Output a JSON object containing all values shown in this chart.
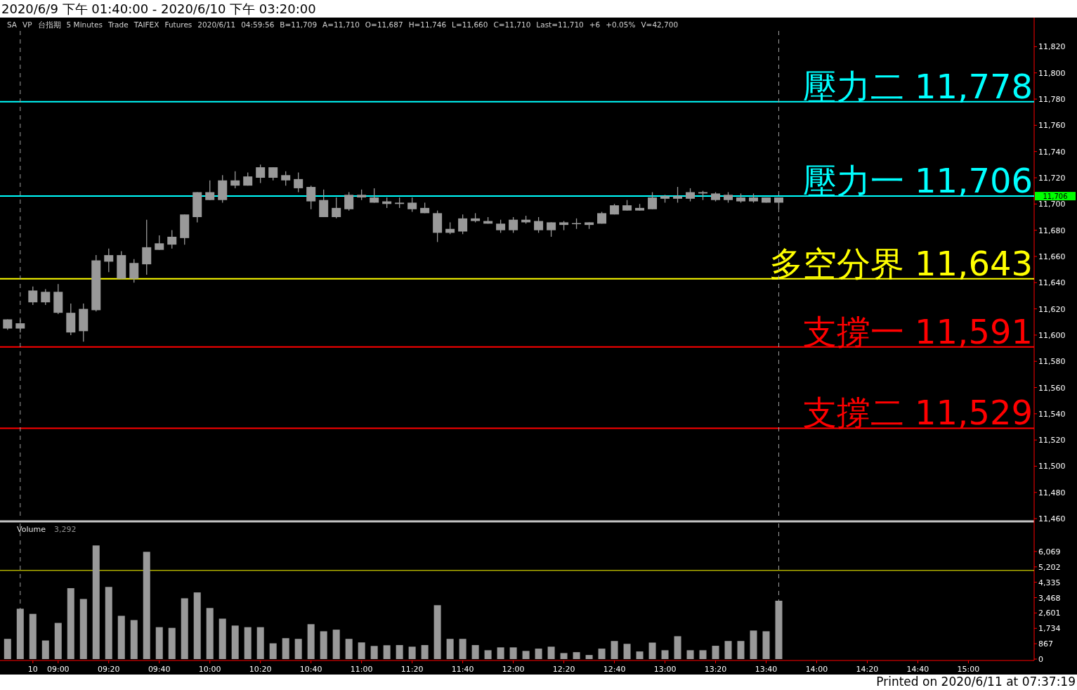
{
  "chart_data": [
    {
      "type": "candlestick",
      "title": "2020/6/9 下午 01:40:00 - 2020/6/10 下午 03:20:00",
      "color": "#999999",
      "annotations": [
        "SA",
        "VP",
        "台指期",
        "5 Minutes",
        "Trade",
        "TAIFEX",
        "Futures",
        "2020/6/11",
        "04:59:56",
        "B=11,709",
        "A=11,710",
        "O=11,687",
        "H=11,746",
        "L=11,660",
        "C=11,710",
        "Last=11,710",
        "+6",
        "+0.05%",
        "V=42,700",
        {
          "text": "11,706",
          "x": "2020-06-10T15:26",
          "y": 11706
        }
      ],
      "x": [
        "2020-06-10T08:40",
        "2020-06-10T08:45",
        "2020-06-10T08:50",
        "2020-06-10T08:55",
        "2020-06-10T09:00",
        "2020-06-10T09:05",
        "2020-06-10T09:10",
        "2020-06-10T09:15",
        "2020-06-10T09:20",
        "2020-06-10T09:25",
        "2020-06-10T09:30",
        "2020-06-10T09:35",
        "2020-06-10T09:40",
        "2020-06-10T09:45",
        "2020-06-10T09:50",
        "2020-06-10T09:55",
        "2020-06-10T10:00",
        "2020-06-10T10:05",
        "2020-06-10T10:10",
        "2020-06-10T10:15",
        "2020-06-10T10:20",
        "2020-06-10T10:25",
        "2020-06-10T10:30",
        "2020-06-10T10:35",
        "2020-06-10T10:40",
        "2020-06-10T10:45",
        "2020-06-10T10:50",
        "2020-06-10T10:55",
        "2020-06-10T11:00",
        "2020-06-10T11:05",
        "2020-06-10T11:10",
        "2020-06-10T11:15",
        "2020-06-10T11:20",
        "2020-06-10T11:25",
        "2020-06-10T11:30",
        "2020-06-10T11:35",
        "2020-06-10T11:40",
        "2020-06-10T11:45",
        "2020-06-10T11:50",
        "2020-06-10T11:55",
        "2020-06-10T12:00",
        "2020-06-10T12:05",
        "2020-06-10T12:10",
        "2020-06-10T12:15",
        "2020-06-10T12:20",
        "2020-06-10T12:25",
        "2020-06-10T12:30",
        "2020-06-10T12:35",
        "2020-06-10T12:40",
        "2020-06-10T12:45",
        "2020-06-10T12:50",
        "2020-06-10T12:55",
        "2020-06-10T13:00",
        "2020-06-10T13:05",
        "2020-06-10T13:10",
        "2020-06-10T13:15",
        "2020-06-10T13:20",
        "2020-06-10T13:25",
        "2020-06-10T13:30",
        "2020-06-10T13:35",
        "2020-06-10T13:40",
        "2020-06-10T13:45"
      ],
      "ohlc": [
        [
          11605,
          11612,
          11604,
          11612
        ],
        [
          11605,
          11612,
          11602,
          11609
        ],
        [
          11625,
          11637,
          11623,
          11634
        ],
        [
          11625,
          11635,
          11623,
          11633
        ],
        [
          11617,
          11639,
          11616,
          11633
        ],
        [
          11602,
          11624,
          11600,
          11617
        ],
        [
          11603,
          11624,
          11595,
          11620
        ],
        [
          11619,
          11661,
          11618,
          11657
        ],
        [
          11656,
          11666,
          11648,
          11661
        ],
        [
          11643,
          11664,
          11643,
          11661
        ],
        [
          11643,
          11658,
          11640,
          11655
        ],
        [
          11654,
          11688,
          11646,
          11667
        ],
        [
          11665,
          11676,
          11665,
          11670
        ],
        [
          11669,
          11680,
          11666,
          11675
        ],
        [
          11674,
          11692,
          11669,
          11692
        ],
        [
          11690,
          11709,
          11686,
          11709
        ],
        [
          11703,
          11718,
          11703,
          11709
        ],
        [
          11703,
          11722,
          11701,
          11718
        ],
        [
          11714,
          11725,
          11712,
          11718
        ],
        [
          11714,
          11724,
          11714,
          11721
        ],
        [
          11720,
          11730,
          11716,
          11728
        ],
        [
          11720,
          11728,
          11718,
          11728
        ],
        [
          11718,
          11725,
          11714,
          11722
        ],
        [
          11712,
          11724,
          11709,
          11719
        ],
        [
          11702,
          11714,
          11696,
          11713
        ],
        [
          11690,
          11711,
          11690,
          11703
        ],
        [
          11690,
          11705,
          11689,
          11697
        ],
        [
          11696,
          11709,
          11695,
          11707
        ],
        [
          11705,
          11711,
          11703,
          11707
        ],
        [
          11701,
          11712,
          11701,
          11705
        ],
        [
          11700,
          11705,
          11697,
          11702
        ],
        [
          11700,
          11705,
          11697,
          11701
        ],
        [
          11696,
          11705,
          11694,
          11701
        ],
        [
          11693,
          11701,
          11693,
          11697
        ],
        [
          11678,
          11695,
          11671,
          11693
        ],
        [
          11678,
          11686,
          11677,
          11681
        ],
        [
          11679,
          11692,
          11677,
          11689
        ],
        [
          11687,
          11693,
          11686,
          11689
        ],
        [
          11685,
          11690,
          11685,
          11687
        ],
        [
          11680,
          11688,
          11678,
          11685
        ],
        [
          11680,
          11690,
          11678,
          11688
        ],
        [
          11686,
          11691,
          11685,
          11688
        ],
        [
          11680,
          11690,
          11678,
          11687
        ],
        [
          11680,
          11686,
          11675,
          11686
        ],
        [
          11684,
          11687,
          11680,
          11686
        ],
        [
          11685,
          11689,
          11681,
          11685
        ],
        [
          11684,
          11686,
          11681,
          11686
        ],
        [
          11685,
          11694,
          11685,
          11693
        ],
        [
          11692,
          11700,
          11692,
          11699
        ],
        [
          11695,
          11703,
          11695,
          11699
        ],
        [
          11695,
          11700,
          11695,
          11697
        ],
        [
          11696,
          11709,
          11696,
          11705
        ],
        [
          11704,
          11707,
          11701,
          11706
        ],
        [
          11704,
          11713,
          11701,
          11706
        ],
        [
          11704,
          11712,
          11702,
          11709
        ],
        [
          11708,
          11710,
          11703,
          11709
        ],
        [
          11703,
          11709,
          11702,
          11708
        ],
        [
          11703,
          11709,
          11701,
          11707
        ],
        [
          11702,
          11708,
          11701,
          11705
        ],
        [
          11702,
          11708,
          11701,
          11705
        ],
        [
          11701,
          11705,
          11701,
          11705
        ],
        [
          11701,
          11705,
          11696,
          11705
        ]
      ],
      "xlim": [
        "2020-06-10T08:37",
        "2020-06-10T15:26"
      ],
      "ylim": [
        11459,
        11832
      ],
      "yticks": [
        {
          "value": 11460,
          "label": "11,460"
        },
        {
          "value": 11480,
          "label": "11,480"
        },
        {
          "value": 11500,
          "label": "11,500"
        },
        {
          "value": 11520,
          "label": "11,520"
        },
        {
          "value": 11540,
          "label": "11,540"
        },
        {
          "value": 11560,
          "label": "11,560"
        },
        {
          "value": 11580,
          "label": "11,580"
        },
        {
          "value": 11600,
          "label": "11,600"
        },
        {
          "value": 11620,
          "label": "11,620"
        },
        {
          "value": 11640,
          "label": "11,640"
        },
        {
          "value": 11660,
          "label": "11,660"
        },
        {
          "value": 11680,
          "label": "11,680"
        },
        {
          "value": 11700,
          "label": "11,700"
        },
        {
          "value": 11720,
          "label": "11,720"
        },
        {
          "value": 11740,
          "label": "11,740"
        },
        {
          "value": 11760,
          "label": "11,760"
        },
        {
          "value": 11780,
          "label": "11,780"
        },
        {
          "value": 11800,
          "label": "11,800"
        },
        {
          "value": 11820,
          "label": "11,820"
        }
      ],
      "tick_labels": "y",
      "ref_lines": [
        {
          "axis": "y",
          "value": 11778,
          "label": "壓力二 11,778",
          "color": "#00ffff"
        },
        {
          "axis": "y",
          "value": 11706,
          "label": "壓力一 11,706",
          "color": "#00ffff"
        },
        {
          "axis": "y",
          "value": 11643,
          "label": "多空分界 11,643",
          "color": "#ffff00"
        },
        {
          "axis": "y",
          "value": 11591,
          "label": "支撐一 11,591",
          "color": "#ff0000"
        },
        {
          "axis": "y",
          "value": 11529,
          "label": "支撐二 11,529",
          "color": "#ff0000"
        },
        {
          "axis": "x",
          "value": "2020-06-10T08:45",
          "color": "#a0a0a0",
          "line_style": "dashed"
        },
        {
          "axis": "x",
          "value": "2020-06-10T13:45",
          "color": "#a0a0a0",
          "line_style": "dashed"
        }
      ]
    },
    {
      "type": "bar",
      "title": "Volume",
      "color": "#999999",
      "annotations": [
        "3,292",
        "Printed on 2020/6/11 at 07:37:19"
      ],
      "x": [
        "2020-06-10T08:40",
        "2020-06-10T08:45",
        "2020-06-10T08:50",
        "2020-06-10T08:55",
        "2020-06-10T09:00",
        "2020-06-10T09:05",
        "2020-06-10T09:10",
        "2020-06-10T09:15",
        "2020-06-10T09:20",
        "2020-06-10T09:25",
        "2020-06-10T09:30",
        "2020-06-10T09:35",
        "2020-06-10T09:40",
        "2020-06-10T09:45",
        "2020-06-10T09:50",
        "2020-06-10T09:55",
        "2020-06-10T10:00",
        "2020-06-10T10:05",
        "2020-06-10T10:10",
        "2020-06-10T10:15",
        "2020-06-10T10:20",
        "2020-06-10T10:25",
        "2020-06-10T10:30",
        "2020-06-10T10:35",
        "2020-06-10T10:40",
        "2020-06-10T10:45",
        "2020-06-10T10:50",
        "2020-06-10T10:55",
        "2020-06-10T11:00",
        "2020-06-10T11:05",
        "2020-06-10T11:10",
        "2020-06-10T11:15",
        "2020-06-10T11:20",
        "2020-06-10T11:25",
        "2020-06-10T11:30",
        "2020-06-10T11:35",
        "2020-06-10T11:40",
        "2020-06-10T11:45",
        "2020-06-10T11:50",
        "2020-06-10T11:55",
        "2020-06-10T12:00",
        "2020-06-10T12:05",
        "2020-06-10T12:10",
        "2020-06-10T12:15",
        "2020-06-10T12:20",
        "2020-06-10T12:25",
        "2020-06-10T12:30",
        "2020-06-10T12:35",
        "2020-06-10T12:40",
        "2020-06-10T12:45",
        "2020-06-10T12:50",
        "2020-06-10T12:55",
        "2020-06-10T13:00",
        "2020-06-10T13:05",
        "2020-06-10T13:10",
        "2020-06-10T13:15",
        "2020-06-10T13:20",
        "2020-06-10T13:25",
        "2020-06-10T13:30",
        "2020-06-10T13:35",
        "2020-06-10T13:40",
        "2020-06-10T13:45"
      ],
      "values": [
        1140,
        2840,
        2550,
        1050,
        2040,
        4000,
        3390,
        6410,
        4070,
        2440,
        2200,
        6050,
        1800,
        1760,
        3430,
        3760,
        2880,
        2280,
        1890,
        1800,
        1800,
        890,
        1180,
        1140,
        1970,
        1570,
        1660,
        1140,
        940,
        740,
        780,
        790,
        700,
        790,
        3040,
        1140,
        1140,
        790,
        500,
        660,
        660,
        460,
        590,
        700,
        340,
        390,
        230,
        590,
        1020,
        860,
        430,
        930,
        500,
        1290,
        500,
        500,
        750,
        1020,
        1020,
        1610,
        1570,
        3292
      ],
      "xlim": [
        "2020-06-10T08:37",
        "2020-06-10T15:26"
      ],
      "ylim": [
        0,
        7650
      ],
      "yticks": [
        0,
        {
          "value": 867,
          "label": "867"
        },
        {
          "value": 1734,
          "label": "1,734"
        },
        {
          "value": 2601,
          "label": "2,601"
        },
        {
          "value": 3468,
          "label": "3,468"
        },
        {
          "value": 4335,
          "label": "4,335"
        },
        {
          "value": 5202,
          "label": "5,202"
        },
        {
          "value": 6069,
          "label": "6,069"
        }
      ],
      "xticks": [
        {
          "value": "2020-06-10T08:50",
          "label": "10"
        },
        {
          "value": "2020-06-10T09:00",
          "label": "09:00"
        },
        {
          "value": "2020-06-10T09:20",
          "label": "09:20"
        },
        {
          "value": "2020-06-10T09:40",
          "label": "09:40"
        },
        {
          "value": "2020-06-10T10:00",
          "label": "10:00"
        },
        {
          "value": "2020-06-10T10:20",
          "label": "10:20"
        },
        {
          "value": "2020-06-10T10:40",
          "label": "10:40"
        },
        {
          "value": "2020-06-10T11:00",
          "label": "11:00"
        },
        {
          "value": "2020-06-10T11:20",
          "label": "11:20"
        },
        {
          "value": "2020-06-10T11:40",
          "label": "11:40"
        },
        {
          "value": "2020-06-10T12:00",
          "label": "12:00"
        },
        {
          "value": "2020-06-10T12:20",
          "label": "12:20"
        },
        {
          "value": "2020-06-10T12:40",
          "label": "12:40"
        },
        {
          "value": "2020-06-10T13:00",
          "label": "13:00"
        },
        {
          "value": "2020-06-10T13:20",
          "label": "13:20"
        },
        {
          "value": "2020-06-10T13:40",
          "label": "13:40"
        },
        {
          "value": "2020-06-10T14:00",
          "label": "14:00"
        },
        {
          "value": "2020-06-10T14:20",
          "label": "14:20"
        },
        {
          "value": "2020-06-10T14:40",
          "label": "14:40"
        },
        {
          "value": "2020-06-10T15:00",
          "label": "15:00"
        }
      ],
      "ref_lines": [
        {
          "axis": "y",
          "value": 5000,
          "color": "#ffff00"
        },
        {
          "axis": "x",
          "value": "2020-06-10T08:45",
          "color": "#a0a0a0",
          "line_style": "dashed"
        },
        {
          "axis": "x",
          "value": "2020-06-10T13:45",
          "color": "#a0a0a0",
          "line_style": "dashed"
        }
      ]
    }
  ]
}
